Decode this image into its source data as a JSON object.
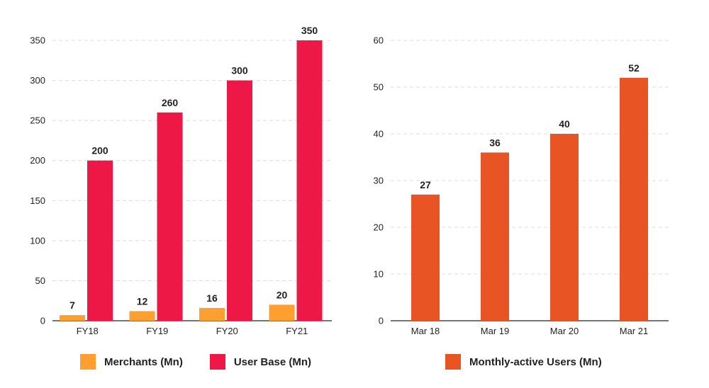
{
  "colors": {
    "merchants": "#FF9F2F",
    "user_base": "#EE1847",
    "mau": "#E85423"
  },
  "chart_data": [
    {
      "type": "bar",
      "categories": [
        "FY18",
        "FY19",
        "FY20",
        "FY21"
      ],
      "series": [
        {
          "name": "Merchants (Mn)",
          "values": [
            7,
            12,
            16,
            20
          ]
        },
        {
          "name": "User Base (Mn)",
          "values": [
            200,
            260,
            300,
            350
          ]
        }
      ],
      "yticks": [
        "0",
        "50",
        "100",
        "150",
        "200",
        "250",
        "300",
        "350"
      ],
      "ylim": [
        0,
        350
      ],
      "grid": true,
      "legend": "bottom"
    },
    {
      "type": "bar",
      "categories": [
        "Mar 18",
        "Mar 19",
        "Mar 20",
        "Mar 21"
      ],
      "series": [
        {
          "name": "Monthly-active Users (Mn)",
          "values": [
            27,
            36,
            40,
            52
          ]
        }
      ],
      "yticks": [
        "0",
        "10",
        "20",
        "30",
        "40",
        "50",
        "60"
      ],
      "ylim": [
        0,
        60
      ],
      "grid": true,
      "legend": "bottom"
    }
  ],
  "legend_left": [
    {
      "label": "Merchants (Mn)",
      "color_key": "merchants"
    },
    {
      "label": "User Base (Mn)",
      "color_key": "user_base"
    }
  ],
  "legend_right": [
    {
      "label": "Monthly-active Users (Mn)",
      "color_key": "mau"
    }
  ]
}
